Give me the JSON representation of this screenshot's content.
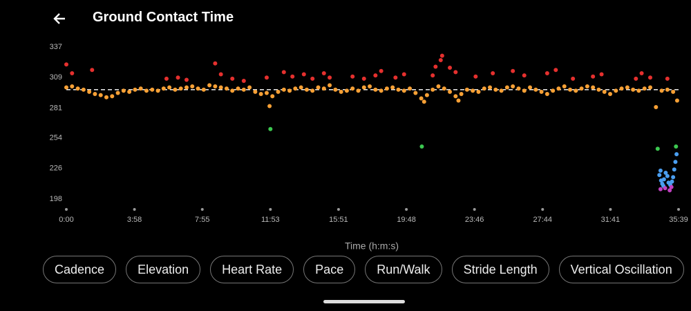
{
  "header": {
    "title": "Ground Contact Time"
  },
  "chart_data": {
    "type": "scatter",
    "x_label": "Time (h:m:s)",
    "xlim": [
      0,
      2139
    ],
    "ylim": [
      190,
      345
    ],
    "xticks": [
      {
        "value": 0,
        "label": "0:00"
      },
      {
        "value": 238,
        "label": "3:58"
      },
      {
        "value": 475,
        "label": "7:55"
      },
      {
        "value": 713,
        "label": "11:53"
      },
      {
        "value": 951,
        "label": "15:51"
      },
      {
        "value": 1188,
        "label": "19:48"
      },
      {
        "value": 1426,
        "label": "23:46"
      },
      {
        "value": 1664,
        "label": "27:44"
      },
      {
        "value": 1901,
        "label": "31:41"
      },
      {
        "value": 2139,
        "label": "35:39"
      }
    ],
    "yticks": [
      337,
      309,
      281,
      254,
      226,
      198
    ],
    "reference_line": 298,
    "grid": false,
    "series": [
      {
        "color": "#f7a035",
        "x": [
          0,
          20,
          40,
          60,
          80,
          100,
          120,
          140,
          160,
          180,
          200,
          220,
          240,
          260,
          280,
          300,
          320,
          340,
          360,
          380,
          400,
          420,
          440,
          460,
          480,
          500,
          520,
          540,
          560,
          580,
          600,
          620,
          640,
          660,
          680,
          700,
          710,
          720,
          740,
          760,
          780,
          800,
          820,
          840,
          860,
          880,
          900,
          920,
          940,
          960,
          980,
          1000,
          1020,
          1040,
          1060,
          1080,
          1100,
          1120,
          1140,
          1160,
          1180,
          1200,
          1220,
          1240,
          1250,
          1260,
          1280,
          1300,
          1320,
          1340,
          1360,
          1370,
          1380,
          1400,
          1420,
          1440,
          1460,
          1480,
          1500,
          1520,
          1540,
          1560,
          1580,
          1600,
          1620,
          1640,
          1660,
          1680,
          1700,
          1720,
          1740,
          1760,
          1780,
          1800,
          1820,
          1840,
          1860,
          1880,
          1900,
          1920,
          1940,
          1960,
          1980,
          2000,
          2020,
          2040,
          2060,
          2080,
          2100,
          2120,
          2134
        ],
        "values": [
          300,
          301,
          299,
          298,
          296,
          294,
          293,
          291,
          292,
          295,
          297,
          296,
          298,
          299,
          297,
          298,
          297,
          299,
          300,
          298,
          299,
          300,
          301,
          299,
          298,
          302,
          301,
          300,
          299,
          297,
          299,
          298,
          300,
          296,
          294,
          295,
          283,
          292,
          296,
          298,
          297,
          299,
          300,
          298,
          297,
          300,
          299,
          302,
          298,
          296,
          297,
          299,
          297,
          300,
          301,
          298,
          297,
          299,
          300,
          298,
          297,
          299,
          295,
          290,
          287,
          293,
          298,
          301,
          299,
          296,
          292,
          288,
          294,
          298,
          297,
          296,
          299,
          300,
          298,
          297,
          300,
          301,
          299,
          297,
          300,
          298,
          296,
          294,
          297,
          299,
          301,
          298,
          297,
          299,
          301,
          300,
          298,
          296,
          294,
          297,
          299,
          300,
          298,
          297,
          299,
          300,
          282,
          297,
          298,
          296,
          288
        ]
      },
      {
        "color": "#e5302e",
        "x": [
          0,
          20,
          90,
          350,
          390,
          420,
          520,
          540,
          580,
          620,
          700,
          760,
          790,
          830,
          860,
          900,
          920,
          1000,
          1040,
          1080,
          1100,
          1150,
          1180,
          1280,
          1290,
          1308,
          1313,
          1340,
          1360,
          1430,
          1490,
          1560,
          1600,
          1680,
          1710,
          1770,
          1840,
          1870,
          1990,
          2010,
          2040,
          2100
        ],
        "values": [
          321,
          313,
          316,
          308,
          309,
          307,
          322,
          312,
          308,
          306,
          309,
          314,
          310,
          312,
          308,
          313,
          309,
          310,
          308,
          311,
          315,
          309,
          312,
          311,
          319,
          325,
          329,
          318,
          314,
          310,
          313,
          315,
          311,
          313,
          316,
          308,
          310,
          312,
          308,
          313,
          309,
          308
        ]
      },
      {
        "color": "#3cc850",
        "x": [
          713,
          1242,
          2066,
          2130
        ],
        "values": [
          262,
          246,
          244,
          246
        ]
      },
      {
        "color": "#4a9ef0",
        "x": [
          2072,
          2076,
          2078,
          2082,
          2086,
          2088,
          2094,
          2100,
          2104,
          2110,
          2116,
          2120,
          2124,
          2128,
          2132
        ],
        "values": [
          220,
          224,
          215,
          212,
          210,
          216,
          222,
          219,
          213,
          211,
          214,
          218,
          225,
          232,
          239
        ]
      },
      {
        "color": "#c040c0",
        "x": [
          2076,
          2092,
          2108,
          2114
        ],
        "values": [
          207,
          208,
          206,
          209
        ]
      }
    ]
  },
  "chips": [
    "Cadence",
    "Elevation",
    "Heart Rate",
    "Pace",
    "Run/Walk",
    "Stride Length",
    "Vertical Oscillation"
  ]
}
